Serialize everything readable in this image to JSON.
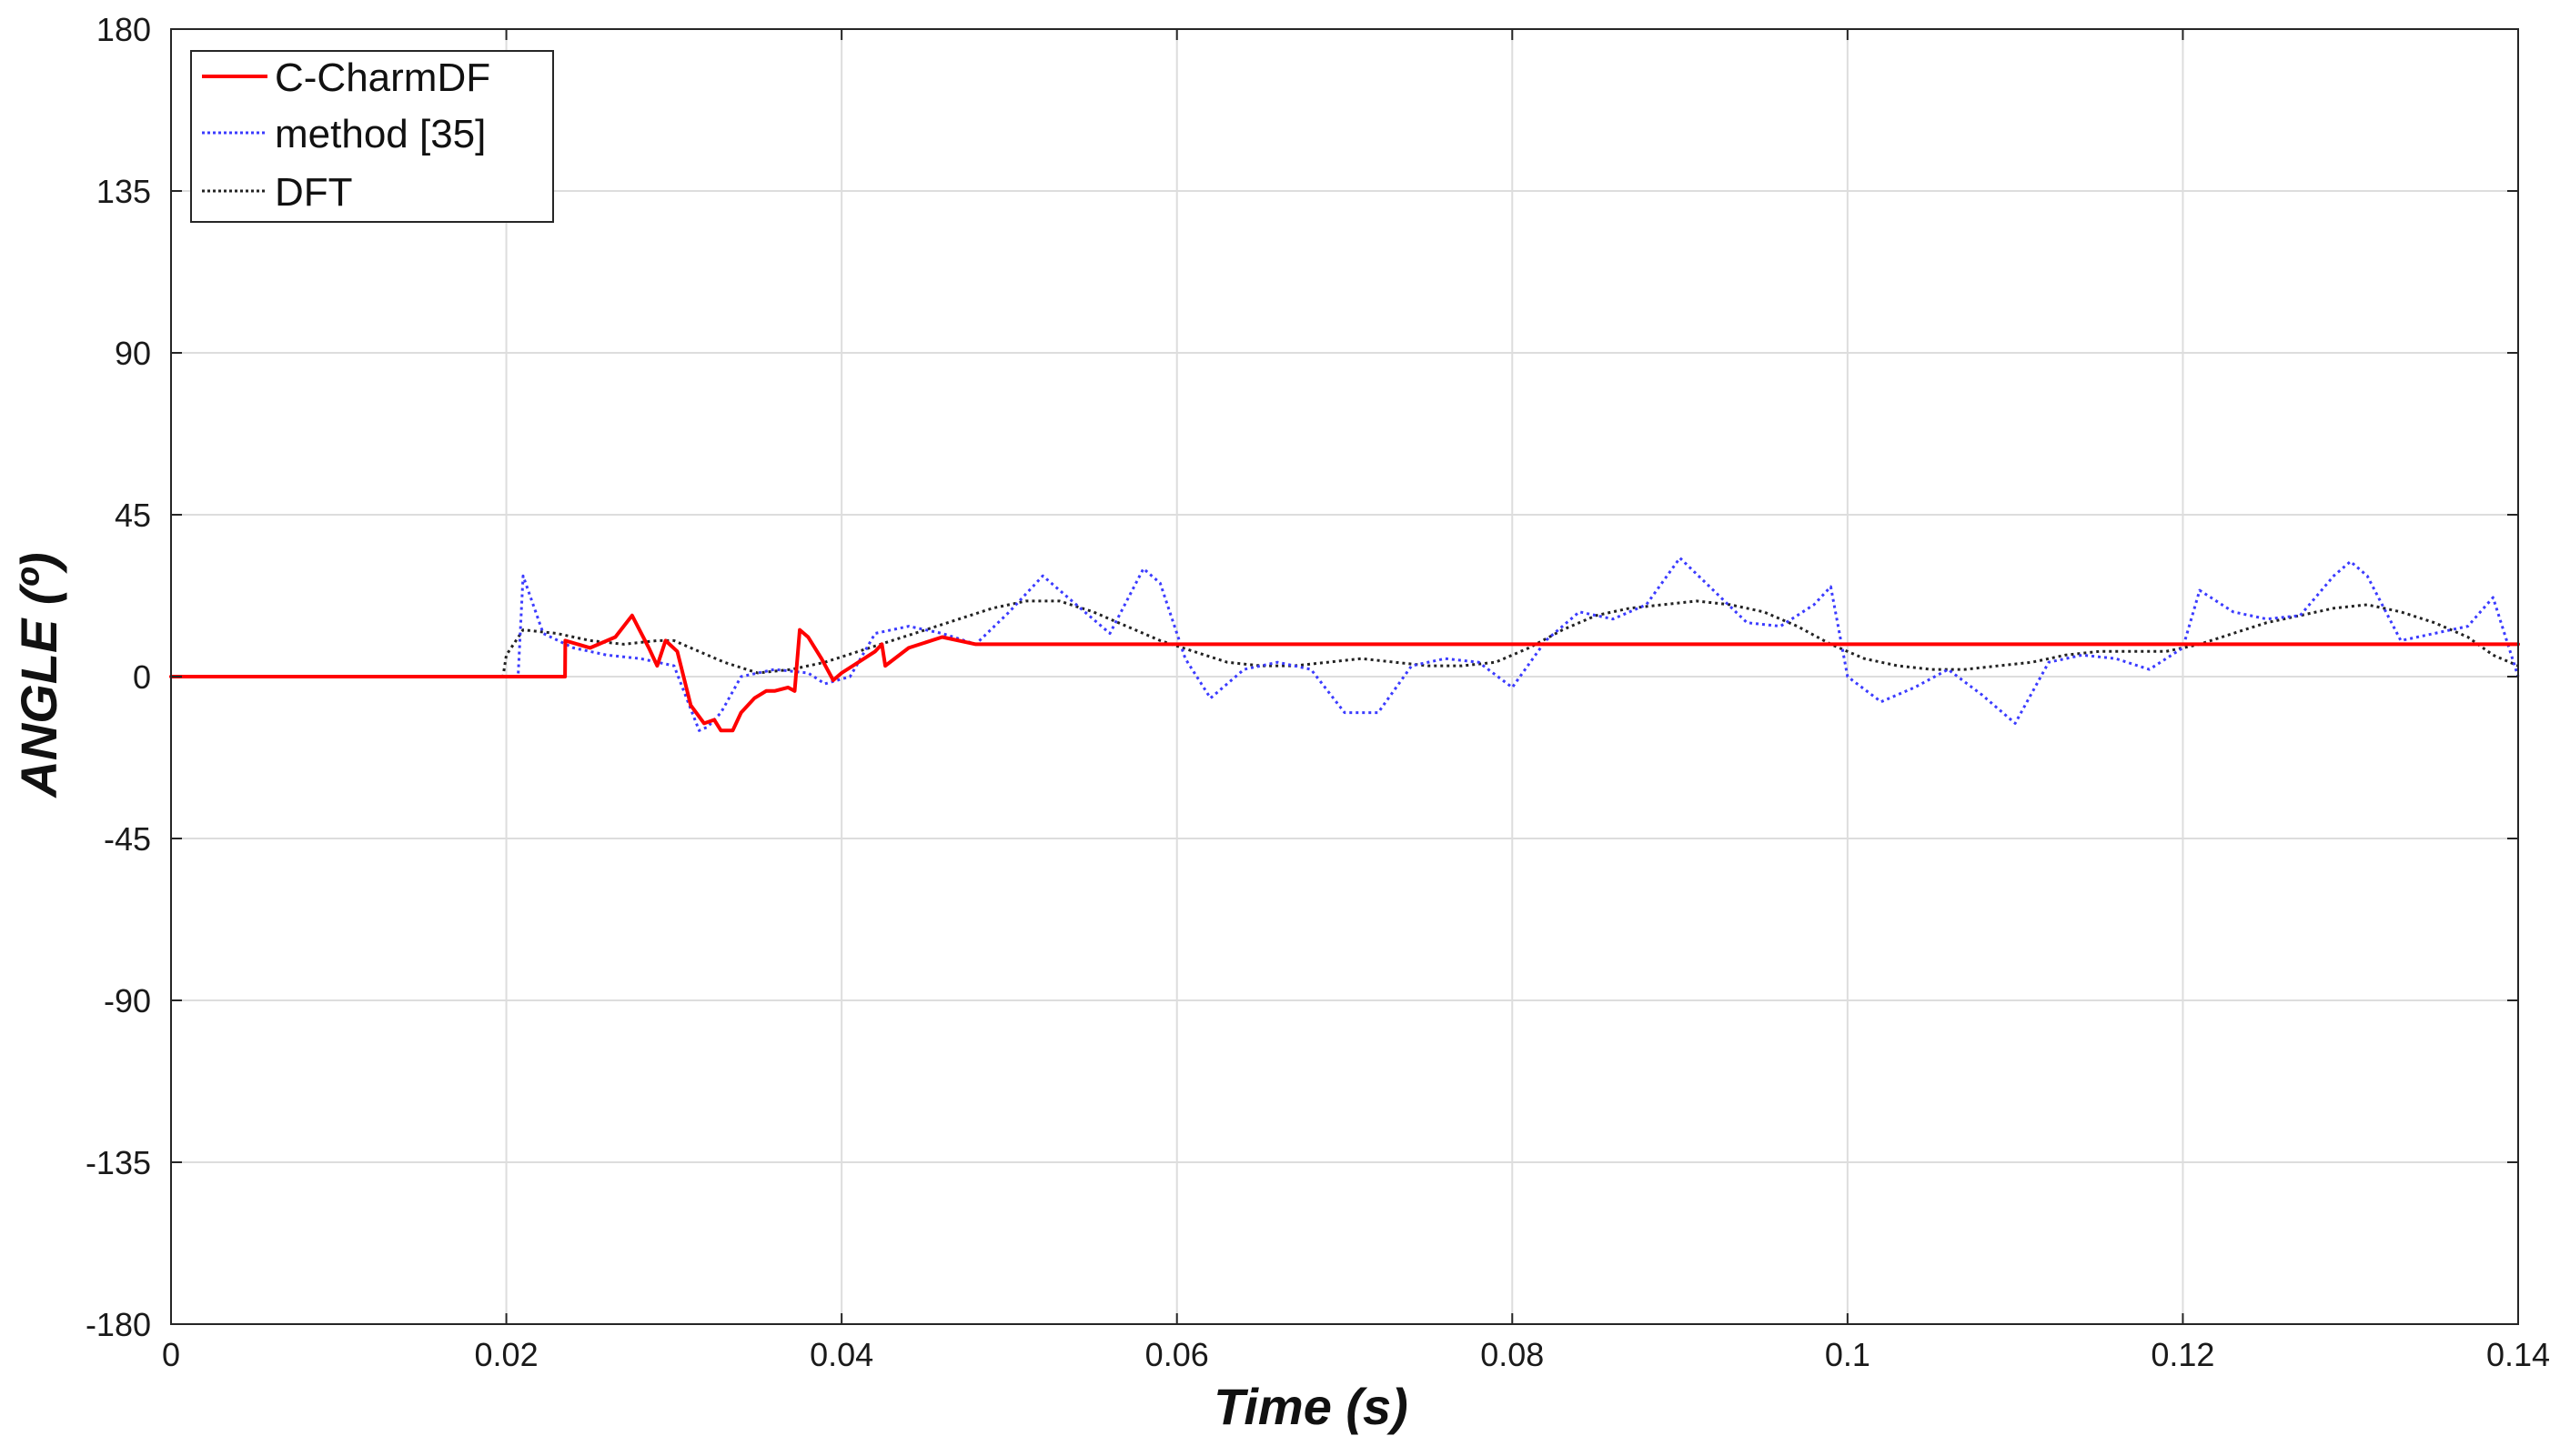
{
  "chart_data": {
    "type": "line",
    "xlabel": "Time (s)",
    "ylabel": "ANGLE (º)",
    "xlim": [
      0,
      0.14
    ],
    "ylim": [
      -180,
      180
    ],
    "xticks": [
      0,
      0.02,
      0.04,
      0.06,
      0.08,
      0.1,
      0.12,
      0.14
    ],
    "xtick_labels": [
      "0",
      "0.02",
      "0.04",
      "0.06",
      "0.08",
      "0.1",
      "0.12",
      "0.14"
    ],
    "yticks": [
      180,
      135,
      90,
      45,
      0,
      -45,
      -90,
      -135,
      -180
    ],
    "ytick_labels": [
      "180",
      "135",
      "90",
      "45",
      "0",
      "-45",
      "-90",
      "-135",
      "-180"
    ],
    "grid": true,
    "legend_position": "top-left",
    "series": [
      {
        "name": "C-CharmDF",
        "color": "#ff0000",
        "style": "solid",
        "x": [
          0,
          0.0235,
          0.02352,
          0.025,
          0.0265,
          0.0275,
          0.0285,
          0.029,
          0.0295,
          0.0302,
          0.031,
          0.0318,
          0.0324,
          0.0328,
          0.0335,
          0.034,
          0.0348,
          0.0355,
          0.036,
          0.0368,
          0.0372,
          0.0375,
          0.038,
          0.0388,
          0.0395,
          0.04,
          0.041,
          0.042,
          0.0424,
          0.0426,
          0.044,
          0.046,
          0.048,
          0.05,
          0.06,
          0.07,
          0.08,
          0.09,
          0.1,
          0.11,
          0.12,
          0.13,
          0.14
        ],
        "y": [
          0,
          0,
          10,
          8,
          11,
          17,
          8,
          3,
          10,
          7,
          -8,
          -13,
          -12,
          -15,
          -15,
          -10,
          -6,
          -4,
          -4,
          -3,
          -4,
          13,
          11,
          5,
          -1,
          1,
          4,
          7,
          9,
          3,
          8,
          11,
          9,
          9,
          9,
          9,
          9,
          9,
          9,
          9,
          9,
          9,
          9
        ]
      },
      {
        "name": "method [35]",
        "color": "#3b3bff",
        "style": "dotted",
        "x": [
          0,
          0.0207,
          0.021,
          0.0222,
          0.024,
          0.026,
          0.028,
          0.03,
          0.031,
          0.0315,
          0.032,
          0.0328,
          0.034,
          0.036,
          0.038,
          0.039,
          0.0405,
          0.042,
          0.044,
          0.046,
          0.048,
          0.05,
          0.052,
          0.054,
          0.056,
          0.058,
          0.059,
          0.0605,
          0.062,
          0.064,
          0.066,
          0.068,
          0.07,
          0.072,
          0.074,
          0.076,
          0.078,
          0.08,
          0.082,
          0.084,
          0.086,
          0.088,
          0.09,
          0.092,
          0.094,
          0.096,
          0.098,
          0.099,
          0.1,
          0.102,
          0.104,
          0.106,
          0.108,
          0.11,
          0.112,
          0.114,
          0.116,
          0.118,
          0.12,
          0.121,
          0.123,
          0.125,
          0.127,
          0.129,
          0.13,
          0.131,
          0.133,
          0.135,
          0.137,
          0.1385,
          0.14
        ],
        "y": [
          0,
          0,
          28,
          12,
          8,
          6,
          5,
          3,
          -9,
          -15,
          -14,
          -10,
          0,
          2,
          1,
          -2,
          0,
          12,
          14,
          12,
          9,
          18,
          28,
          20,
          12,
          30,
          26,
          5,
          -6,
          2,
          4,
          2,
          -10,
          -10,
          3,
          5,
          4,
          -3,
          10,
          18,
          16,
          20,
          33,
          24,
          15,
          14,
          20,
          25,
          0,
          -7,
          -3,
          2,
          -5,
          -13,
          4,
          6,
          5,
          2,
          8,
          24,
          18,
          16,
          17,
          28,
          32,
          28,
          10,
          12,
          14,
          22,
          0
        ]
      },
      {
        "name": "DFT",
        "color": "#222222",
        "style": "dotted",
        "x": [
          0,
          0.0198,
          0.02,
          0.021,
          0.023,
          0.025,
          0.027,
          0.029,
          0.03,
          0.031,
          0.033,
          0.035,
          0.037,
          0.039,
          0.041,
          0.043,
          0.045,
          0.047,
          0.049,
          0.051,
          0.053,
          0.055,
          0.057,
          0.059,
          0.061,
          0.063,
          0.065,
          0.067,
          0.069,
          0.071,
          0.073,
          0.075,
          0.077,
          0.079,
          0.081,
          0.083,
          0.085,
          0.087,
          0.089,
          0.091,
          0.093,
          0.095,
          0.097,
          0.099,
          0.101,
          0.103,
          0.105,
          0.107,
          0.109,
          0.111,
          0.113,
          0.115,
          0.117,
          0.119,
          0.121,
          0.123,
          0.125,
          0.127,
          0.129,
          0.131,
          0.133,
          0.135,
          0.137,
          0.1385,
          0.14
        ],
        "y": [
          0,
          0,
          6,
          13,
          12,
          10,
          9,
          10,
          10,
          8,
          4,
          1,
          2,
          4,
          7,
          10,
          13,
          16,
          19,
          21,
          21,
          18,
          14,
          10,
          7,
          4,
          3,
          3,
          4,
          5,
          4,
          3,
          3,
          4,
          8,
          13,
          17,
          19,
          20,
          21,
          20,
          18,
          14,
          9,
          5,
          3,
          2,
          2,
          3,
          4,
          6,
          7,
          7,
          7,
          9,
          12,
          15,
          17,
          19,
          20,
          18,
          15,
          11,
          6,
          3
        ]
      }
    ]
  }
}
